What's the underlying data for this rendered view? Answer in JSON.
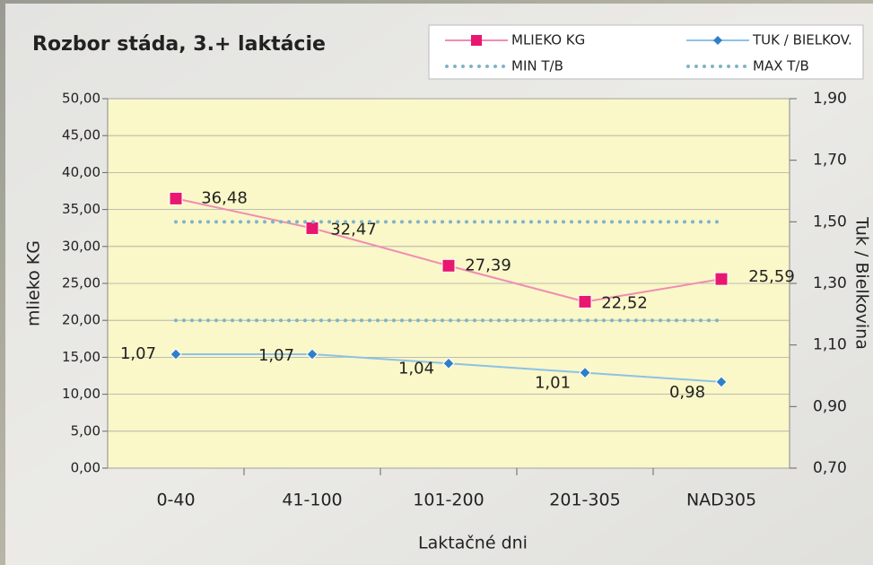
{
  "chart_data": {
    "type": "line",
    "title": "Rozbor stáda, 3.+ laktácie",
    "x_label": "Laktačné dni",
    "y_label": "mlieko KG",
    "y2_label": "Tuk / Bielkovina",
    "categories": [
      "0-40",
      "41-100",
      "101-200",
      "201-305",
      "NAD305"
    ],
    "ylim": [
      0,
      50
    ],
    "yticks": [
      {
        "value": 0,
        "label": "0,00"
      },
      {
        "value": 5,
        "label": "5,00"
      },
      {
        "value": 10,
        "label": "10,00"
      },
      {
        "value": 15,
        "label": "15,00"
      },
      {
        "value": 20,
        "label": "20,00"
      },
      {
        "value": 25,
        "label": "25,00"
      },
      {
        "value": 30,
        "label": "30,00"
      },
      {
        "value": 35,
        "label": "35,00"
      },
      {
        "value": 40,
        "label": "40,00"
      },
      {
        "value": 45,
        "label": "45,00"
      },
      {
        "value": 50,
        "label": "50,00"
      }
    ],
    "y2lim": [
      0.7,
      1.9
    ],
    "y2ticks": [
      {
        "value": 0.7,
        "label": "0,70"
      },
      {
        "value": 0.9,
        "label": "0,90"
      },
      {
        "value": 1.1,
        "label": "1,10"
      },
      {
        "value": 1.3,
        "label": "1,30"
      },
      {
        "value": 1.5,
        "label": "1,50"
      },
      {
        "value": 1.7,
        "label": "1,70"
      },
      {
        "value": 1.9,
        "label": "1,90"
      }
    ],
    "grid": true,
    "legend": "top-right",
    "series": [
      {
        "name": "MLIEKO KG",
        "color": "#e8176f",
        "line_color": "#f08cb4",
        "marker": "square",
        "values": [
          36.48,
          32.47,
          27.39,
          22.52,
          25.59
        ],
        "value_labels": [
          "36,48",
          "32,47",
          "27,39",
          "22,52",
          "25,59"
        ]
      },
      {
        "name": "TUK / BIELKOV.",
        "color": "#2f7fc8",
        "line_color": "#8cc2e6",
        "marker": "diamond",
        "axis": "y2",
        "values": [
          1.07,
          1.07,
          1.04,
          1.01,
          0.98
        ],
        "value_labels": [
          "1,07",
          "1,07",
          "1,04",
          "1,01",
          "0,98"
        ]
      },
      {
        "name": "MIN T/B",
        "color": "#7fb3c8",
        "style": "dotted",
        "axis": "y2",
        "values": [
          1.18,
          1.18,
          1.18,
          1.18,
          1.18
        ]
      },
      {
        "name": "MAX T/B",
        "color": "#7fb3c8",
        "style": "dotted",
        "axis": "y2",
        "values": [
          1.5,
          1.5,
          1.5,
          1.5,
          1.5
        ]
      }
    ]
  }
}
